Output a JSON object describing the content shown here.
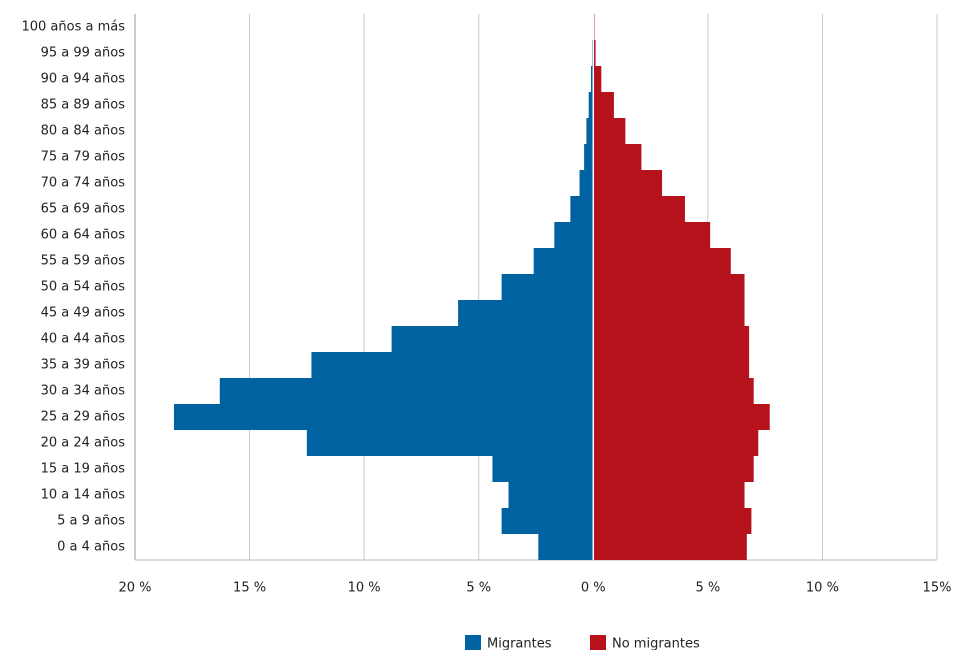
{
  "chart_data": {
    "type": "bar",
    "orientation": "horizontal",
    "categories": [
      "0 a 4 años",
      "5 a 9 años",
      "10 a 14 años",
      "15 a 19 años",
      "20 a 24 años",
      "25 a 29 años",
      "30 a 34 años",
      "35 a 39  años",
      "40 a 44 años",
      "45 a 49 años",
      "50 a 54 años",
      "55 a 59 años",
      "60 a 64 años",
      "65 a 69 años",
      "70 a 74 años",
      "75 a 79 años",
      "80 a 84 años",
      "85 a 89 años",
      "90 a 94  años",
      "95 a 99 años",
      "100 años a más"
    ],
    "series": [
      {
        "name": "Migrantes",
        "color": "#0062a0",
        "values": [
          -2.4,
          -4.0,
          -3.7,
          -4.4,
          -12.5,
          -18.3,
          -16.3,
          -12.3,
          -8.8,
          -5.9,
          -4.0,
          -2.6,
          -1.7,
          -1.0,
          -0.6,
          -0.4,
          -0.3,
          -0.2,
          -0.1,
          -0.05,
          -0.02
        ]
      },
      {
        "name": "No migrantes",
        "color": "#b5121b",
        "values": [
          6.7,
          6.9,
          6.6,
          7.0,
          7.2,
          7.7,
          7.0,
          6.8,
          6.8,
          6.6,
          6.6,
          6.0,
          5.1,
          4.0,
          3.0,
          2.1,
          1.4,
          0.9,
          0.35,
          0.1,
          0.05
        ]
      }
    ],
    "xlim": [
      -20,
      15
    ],
    "xticks": [
      {
        "value": -20,
        "label": "20 %"
      },
      {
        "value": -15,
        "label": "15 %"
      },
      {
        "value": -10,
        "label": "10 %"
      },
      {
        "value": -5,
        "label": "5 %"
      },
      {
        "value": 0,
        "label": "0 %"
      },
      {
        "value": 5,
        "label": "5 %"
      },
      {
        "value": 10,
        "label": "10 %"
      },
      {
        "value": 15,
        "label": "15%"
      }
    ],
    "grid": true,
    "legend": "bottom"
  }
}
